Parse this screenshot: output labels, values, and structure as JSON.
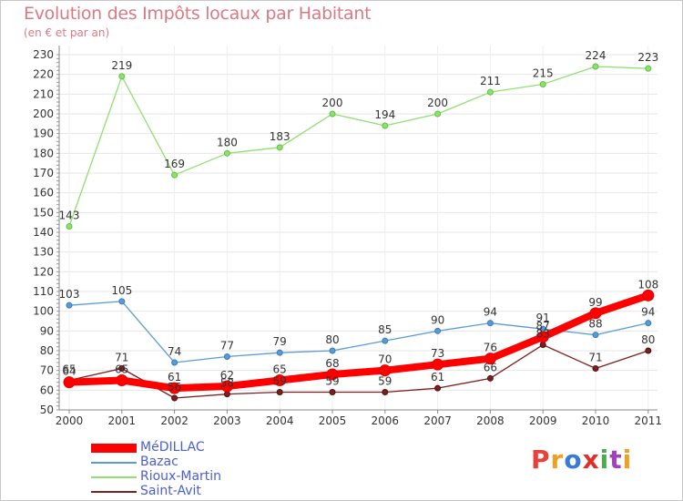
{
  "title": "Evolution des Impôts locaux par Habitant",
  "subtitle": "(en € et par an)",
  "logo": {
    "text": "Proxiti",
    "colors": [
      "#e8403a",
      "#f0a020",
      "#3a7ad8",
      "#e0302a",
      "#48b048",
      "#a040c0",
      "#f0a020"
    ]
  },
  "chart_data": {
    "type": "line",
    "title": "Evolution des Impôts locaux par Habitant",
    "subtitle": "(en € et par an)",
    "xlabel": "",
    "ylabel": "",
    "x": [
      "2000",
      "2001",
      "2002",
      "2003",
      "2004",
      "2005",
      "2006",
      "2007",
      "2008",
      "2009",
      "2010",
      "2011"
    ],
    "ylim": [
      50,
      230
    ],
    "yticks": [
      50,
      60,
      70,
      80,
      90,
      100,
      110,
      120,
      130,
      140,
      150,
      160,
      170,
      180,
      190,
      200,
      210,
      220,
      230
    ],
    "grid": true,
    "legend": "bottom-left",
    "series": [
      {
        "name": "MéDILLAC",
        "color": "#ff0000",
        "values": [
          64,
          65,
          61,
          62,
          65,
          68,
          70,
          73,
          76,
          87,
          99,
          108
        ]
      },
      {
        "name": "Bazac",
        "color": "#5a9bd5",
        "values": [
          103,
          105,
          74,
          77,
          79,
          80,
          85,
          90,
          94,
          91,
          88,
          94
        ]
      },
      {
        "name": "Rioux-Martin",
        "color": "#90e070",
        "values": [
          143,
          219,
          169,
          180,
          183,
          200,
          194,
          200,
          211,
          215,
          224,
          223
        ]
      },
      {
        "name": "Saint-Avit",
        "color": "#7a2020",
        "values": [
          65,
          71,
          56,
          58,
          59,
          59,
          59,
          61,
          66,
          83,
          71,
          80
        ]
      }
    ]
  }
}
